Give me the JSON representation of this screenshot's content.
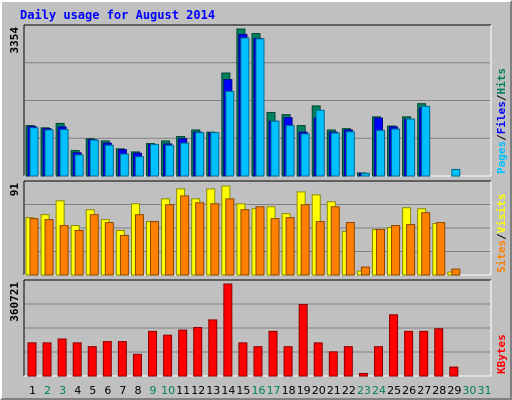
{
  "chart_title": "Daily usage for August 2014",
  "colors": {
    "title": "#0000ff",
    "background": "#c0c0c0",
    "plot_bg": "#c0c0c0",
    "hits": "#00805c",
    "files": "#0000ff",
    "pages": "#00c0ff",
    "visits": "#ffff00",
    "sites": "#ff8000",
    "kbytes": "#ff0000",
    "weekday_label": "#000000",
    "weekend_label": "#00805c"
  },
  "chart_data": [
    {
      "type": "bar",
      "name": "pages-files-hits",
      "categories": [
        "1",
        "2",
        "3",
        "4",
        "5",
        "6",
        "7",
        "8",
        "9",
        "10",
        "11",
        "12",
        "13",
        "14",
        "15",
        "16",
        "17",
        "18",
        "19",
        "20",
        "21",
        "22",
        "23",
        "24",
        "25",
        "26",
        "27",
        "28",
        "29",
        "30",
        "31"
      ],
      "weekend_days": [
        2,
        3,
        9,
        10,
        16,
        17,
        23,
        24,
        30,
        31
      ],
      "y_max_label": "3354",
      "ymax": 3354,
      "legend": [
        "Pages",
        "Files",
        "Hits"
      ],
      "series": [
        {
          "name": "Hits",
          "values": [
            1150,
            1100,
            1200,
            580,
            850,
            800,
            620,
            550,
            740,
            800,
            900,
            1050,
            1000,
            2350,
            3354,
            3250,
            1450,
            1400,
            1150,
            1600,
            1050,
            1080,
            70,
            1350,
            1140,
            1350,
            1650,
            0,
            0,
            0,
            0
          ]
        },
        {
          "name": "Files",
          "values": [
            1130,
            1080,
            1120,
            530,
            830,
            750,
            600,
            520,
            720,
            730,
            850,
            1000,
            980,
            2200,
            3230,
            3140,
            1250,
            1330,
            1000,
            1320,
            1000,
            1050,
            60,
            1320,
            1120,
            1300,
            1550,
            0,
            0,
            0,
            0
          ]
        },
        {
          "name": "Pages",
          "values": [
            1100,
            1050,
            1060,
            480,
            820,
            700,
            500,
            440,
            720,
            700,
            750,
            990,
            990,
            1930,
            3150,
            3130,
            1250,
            1150,
            960,
            1500,
            980,
            1010,
            60,
            1040,
            1070,
            1300,
            1590,
            0,
            150,
            0,
            0
          ]
        }
      ]
    },
    {
      "type": "bar",
      "name": "visits-sites",
      "categories": [
        "1",
        "2",
        "3",
        "4",
        "5",
        "6",
        "7",
        "8",
        "9",
        "10",
        "11",
        "12",
        "13",
        "14",
        "15",
        "16",
        "17",
        "18",
        "19",
        "20",
        "21",
        "22",
        "23",
        "24",
        "25",
        "26",
        "27",
        "28",
        "29",
        "30",
        "31"
      ],
      "y_max_label": "91",
      "ymax": 91,
      "legend": [
        "Sites",
        "Visits"
      ],
      "series": [
        {
          "name": "Visits",
          "values": [
            58,
            61,
            75,
            50,
            66,
            56,
            45,
            72,
            54,
            77,
            87,
            77,
            87,
            90,
            72,
            67,
            69,
            62,
            84,
            81,
            74,
            44,
            4,
            46,
            48,
            68,
            67,
            52,
            3,
            0,
            0
          ]
        },
        {
          "name": "Sites",
          "values": [
            57,
            56,
            50,
            45,
            61,
            53,
            40,
            61,
            54,
            71,
            80,
            73,
            72,
            77,
            66,
            69,
            57,
            58,
            71,
            54,
            69,
            53,
            8,
            46,
            50,
            51,
            63,
            53,
            6,
            0,
            0
          ]
        }
      ]
    },
    {
      "type": "bar",
      "name": "kbytes",
      "categories": [
        "1",
        "2",
        "3",
        "4",
        "5",
        "6",
        "7",
        "8",
        "9",
        "10",
        "11",
        "12",
        "13",
        "14",
        "15",
        "16",
        "17",
        "18",
        "19",
        "20",
        "21",
        "22",
        "23",
        "24",
        "25",
        "26",
        "27",
        "28",
        "29",
        "30",
        "31"
      ],
      "y_max_label": "360721",
      "ymax": 360721,
      "legend": [
        "KBytes"
      ],
      "series": [
        {
          "name": "KBytes",
          "values": [
            130000,
            130000,
            145000,
            130000,
            115000,
            135000,
            135000,
            85000,
            175000,
            160000,
            180000,
            190000,
            220000,
            360721,
            130000,
            115000,
            175000,
            115000,
            280000,
            130000,
            95000,
            115000,
            10000,
            115000,
            240000,
            175000,
            175000,
            185000,
            35000,
            0,
            0
          ]
        }
      ]
    }
  ]
}
